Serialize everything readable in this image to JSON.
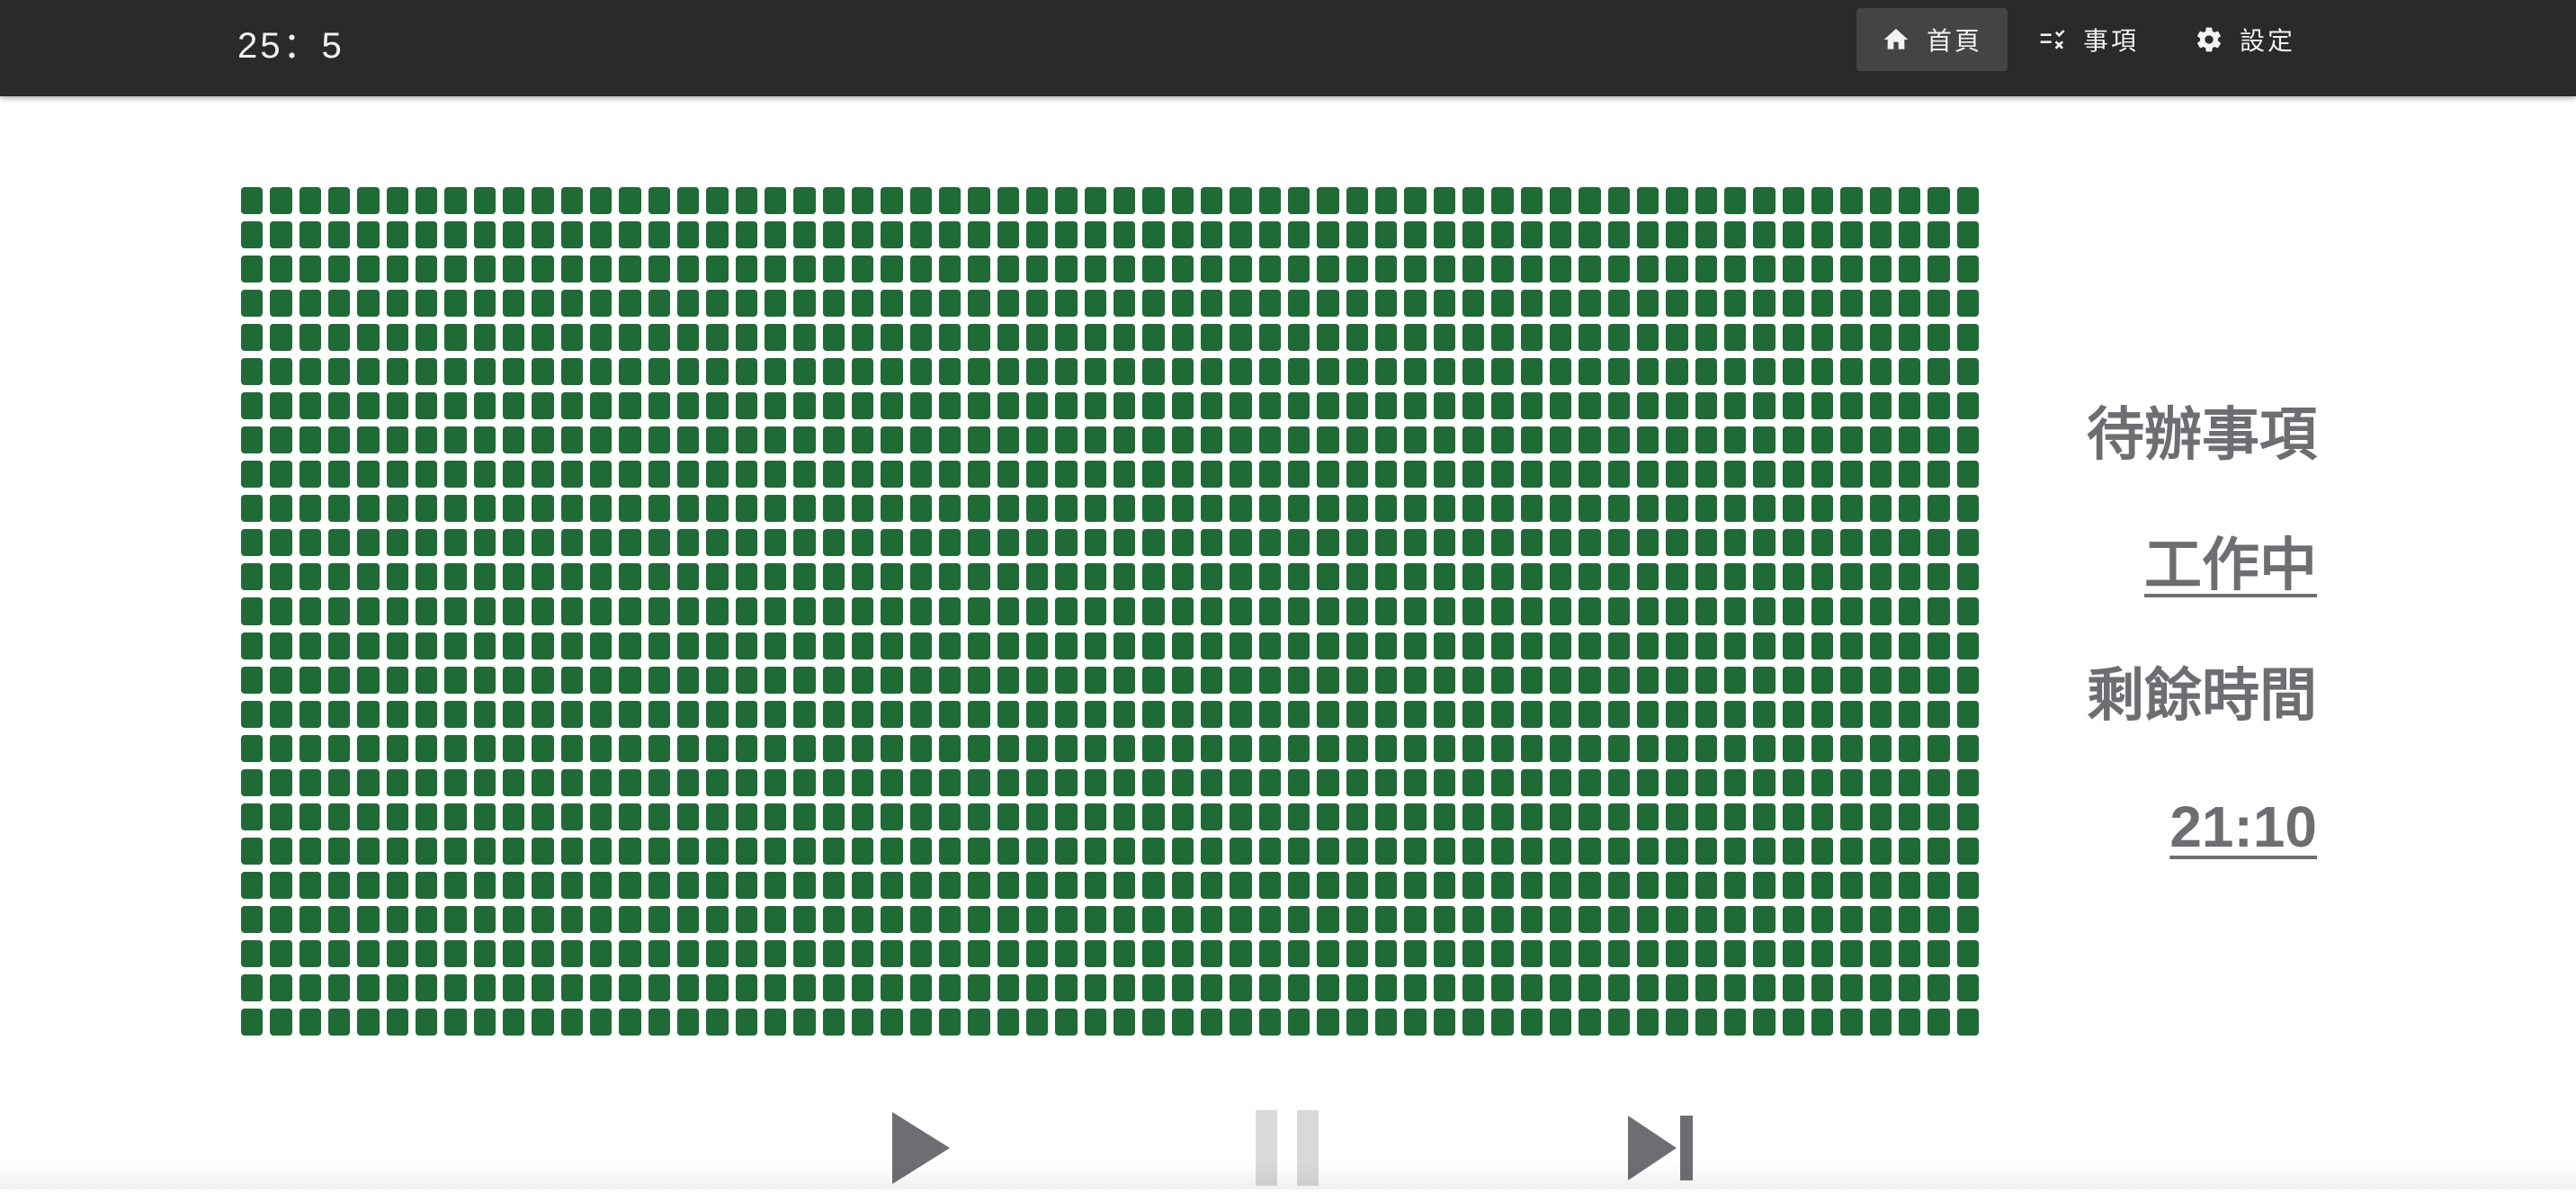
{
  "app": {
    "title": "25：5"
  },
  "nav": {
    "items": [
      {
        "label": "首頁",
        "icon": "home-icon",
        "active": true
      },
      {
        "label": "事項",
        "icon": "checklist-icon",
        "active": false
      },
      {
        "label": "設定",
        "icon": "gear-icon",
        "active": false
      }
    ]
  },
  "grid": {
    "color": "#1f6b36",
    "rows": 25,
    "columns": 60
  },
  "status": {
    "todo_heading": "待辦事項",
    "mode": "工作中",
    "remaining_heading": "剩餘時間",
    "remaining_time": "21:10"
  },
  "controls": {
    "play": {
      "icon": "play-icon",
      "enabled": true
    },
    "pause": {
      "icon": "pause-icon",
      "enabled": false
    },
    "skip": {
      "icon": "skip-next-icon",
      "enabled": true
    }
  },
  "colors": {
    "appbar": "#2a2a2a",
    "text_muted": "#6e6e72",
    "control_active": "#6e6e72",
    "control_disabled": "#d9d9d9"
  }
}
